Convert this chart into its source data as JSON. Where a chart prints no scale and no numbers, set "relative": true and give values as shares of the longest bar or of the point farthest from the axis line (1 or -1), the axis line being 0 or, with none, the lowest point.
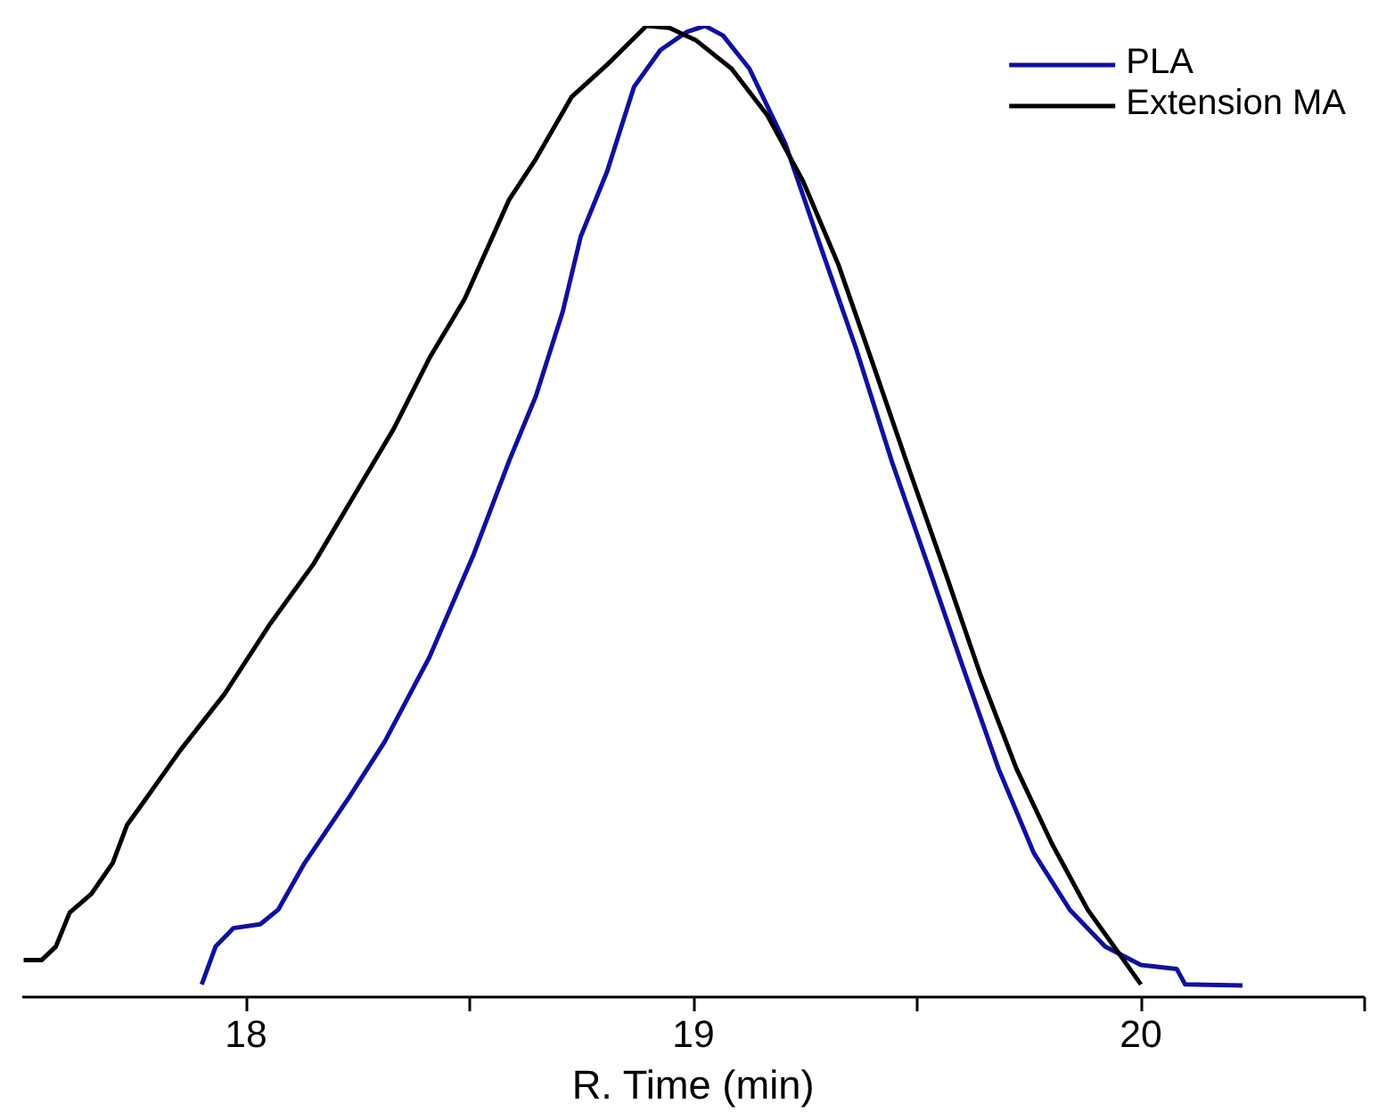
{
  "chart_data": {
    "type": "line",
    "xlabel": "R. Time (min)",
    "relative": true,
    "xlim": [
      17.5,
      20.5
    ],
    "xticks": [
      18,
      {
        "value": 18.5,
        "label": null
      },
      19,
      {
        "value": 19.5,
        "label": null
      },
      20,
      {
        "value": 20.5,
        "label": null
      }
    ],
    "tick_labels": "x",
    "grid": false,
    "legend": "top right",
    "marker": "none",
    "line_style": "solid",
    "series": [
      {
        "name": "PLA",
        "color": "#1010a0",
        "x": [
          17.901,
          17.932,
          17.972,
          18.032,
          18.072,
          18.131,
          18.231,
          18.31,
          18.41,
          18.509,
          18.588,
          18.648,
          18.708,
          18.748,
          18.807,
          18.867,
          18.926,
          18.986,
          19.026,
          19.066,
          19.125,
          19.205,
          19.284,
          19.364,
          19.443,
          19.523,
          19.602,
          19.682,
          19.761,
          19.841,
          19.92,
          20.0,
          20.08,
          20.099,
          20.227
        ],
        "values": [
          0.013,
          0.052,
          0.071,
          0.075,
          0.09,
          0.138,
          0.206,
          0.263,
          0.35,
          0.456,
          0.552,
          0.619,
          0.706,
          0.783,
          0.85,
          0.937,
          0.975,
          0.994,
          1.0,
          0.99,
          0.956,
          0.879,
          0.773,
          0.667,
          0.552,
          0.446,
          0.34,
          0.235,
          0.148,
          0.09,
          0.052,
          0.033,
          0.029,
          0.013,
          0.012
        ]
      },
      {
        "name": "Extension MA",
        "color": "#000000",
        "x": [
          17.503,
          17.543,
          17.575,
          17.606,
          17.654,
          17.702,
          17.734,
          17.773,
          17.853,
          17.952,
          18.052,
          18.151,
          18.25,
          18.33,
          18.41,
          18.489,
          18.588,
          18.648,
          18.728,
          18.807,
          18.895,
          18.946,
          19.006,
          19.085,
          19.165,
          19.245,
          19.324,
          19.404,
          19.483,
          19.563,
          19.642,
          19.722,
          19.801,
          19.881,
          19.94,
          20.0
        ],
        "values": [
          0.038,
          0.038,
          0.052,
          0.087,
          0.106,
          0.138,
          0.177,
          0.202,
          0.254,
          0.312,
          0.383,
          0.446,
          0.523,
          0.585,
          0.658,
          0.719,
          0.821,
          0.863,
          0.927,
          0.96,
          1.0,
          0.998,
          0.985,
          0.956,
          0.908,
          0.84,
          0.754,
          0.648,
          0.542,
          0.437,
          0.331,
          0.235,
          0.158,
          0.09,
          0.052,
          0.013
        ]
      }
    ]
  }
}
